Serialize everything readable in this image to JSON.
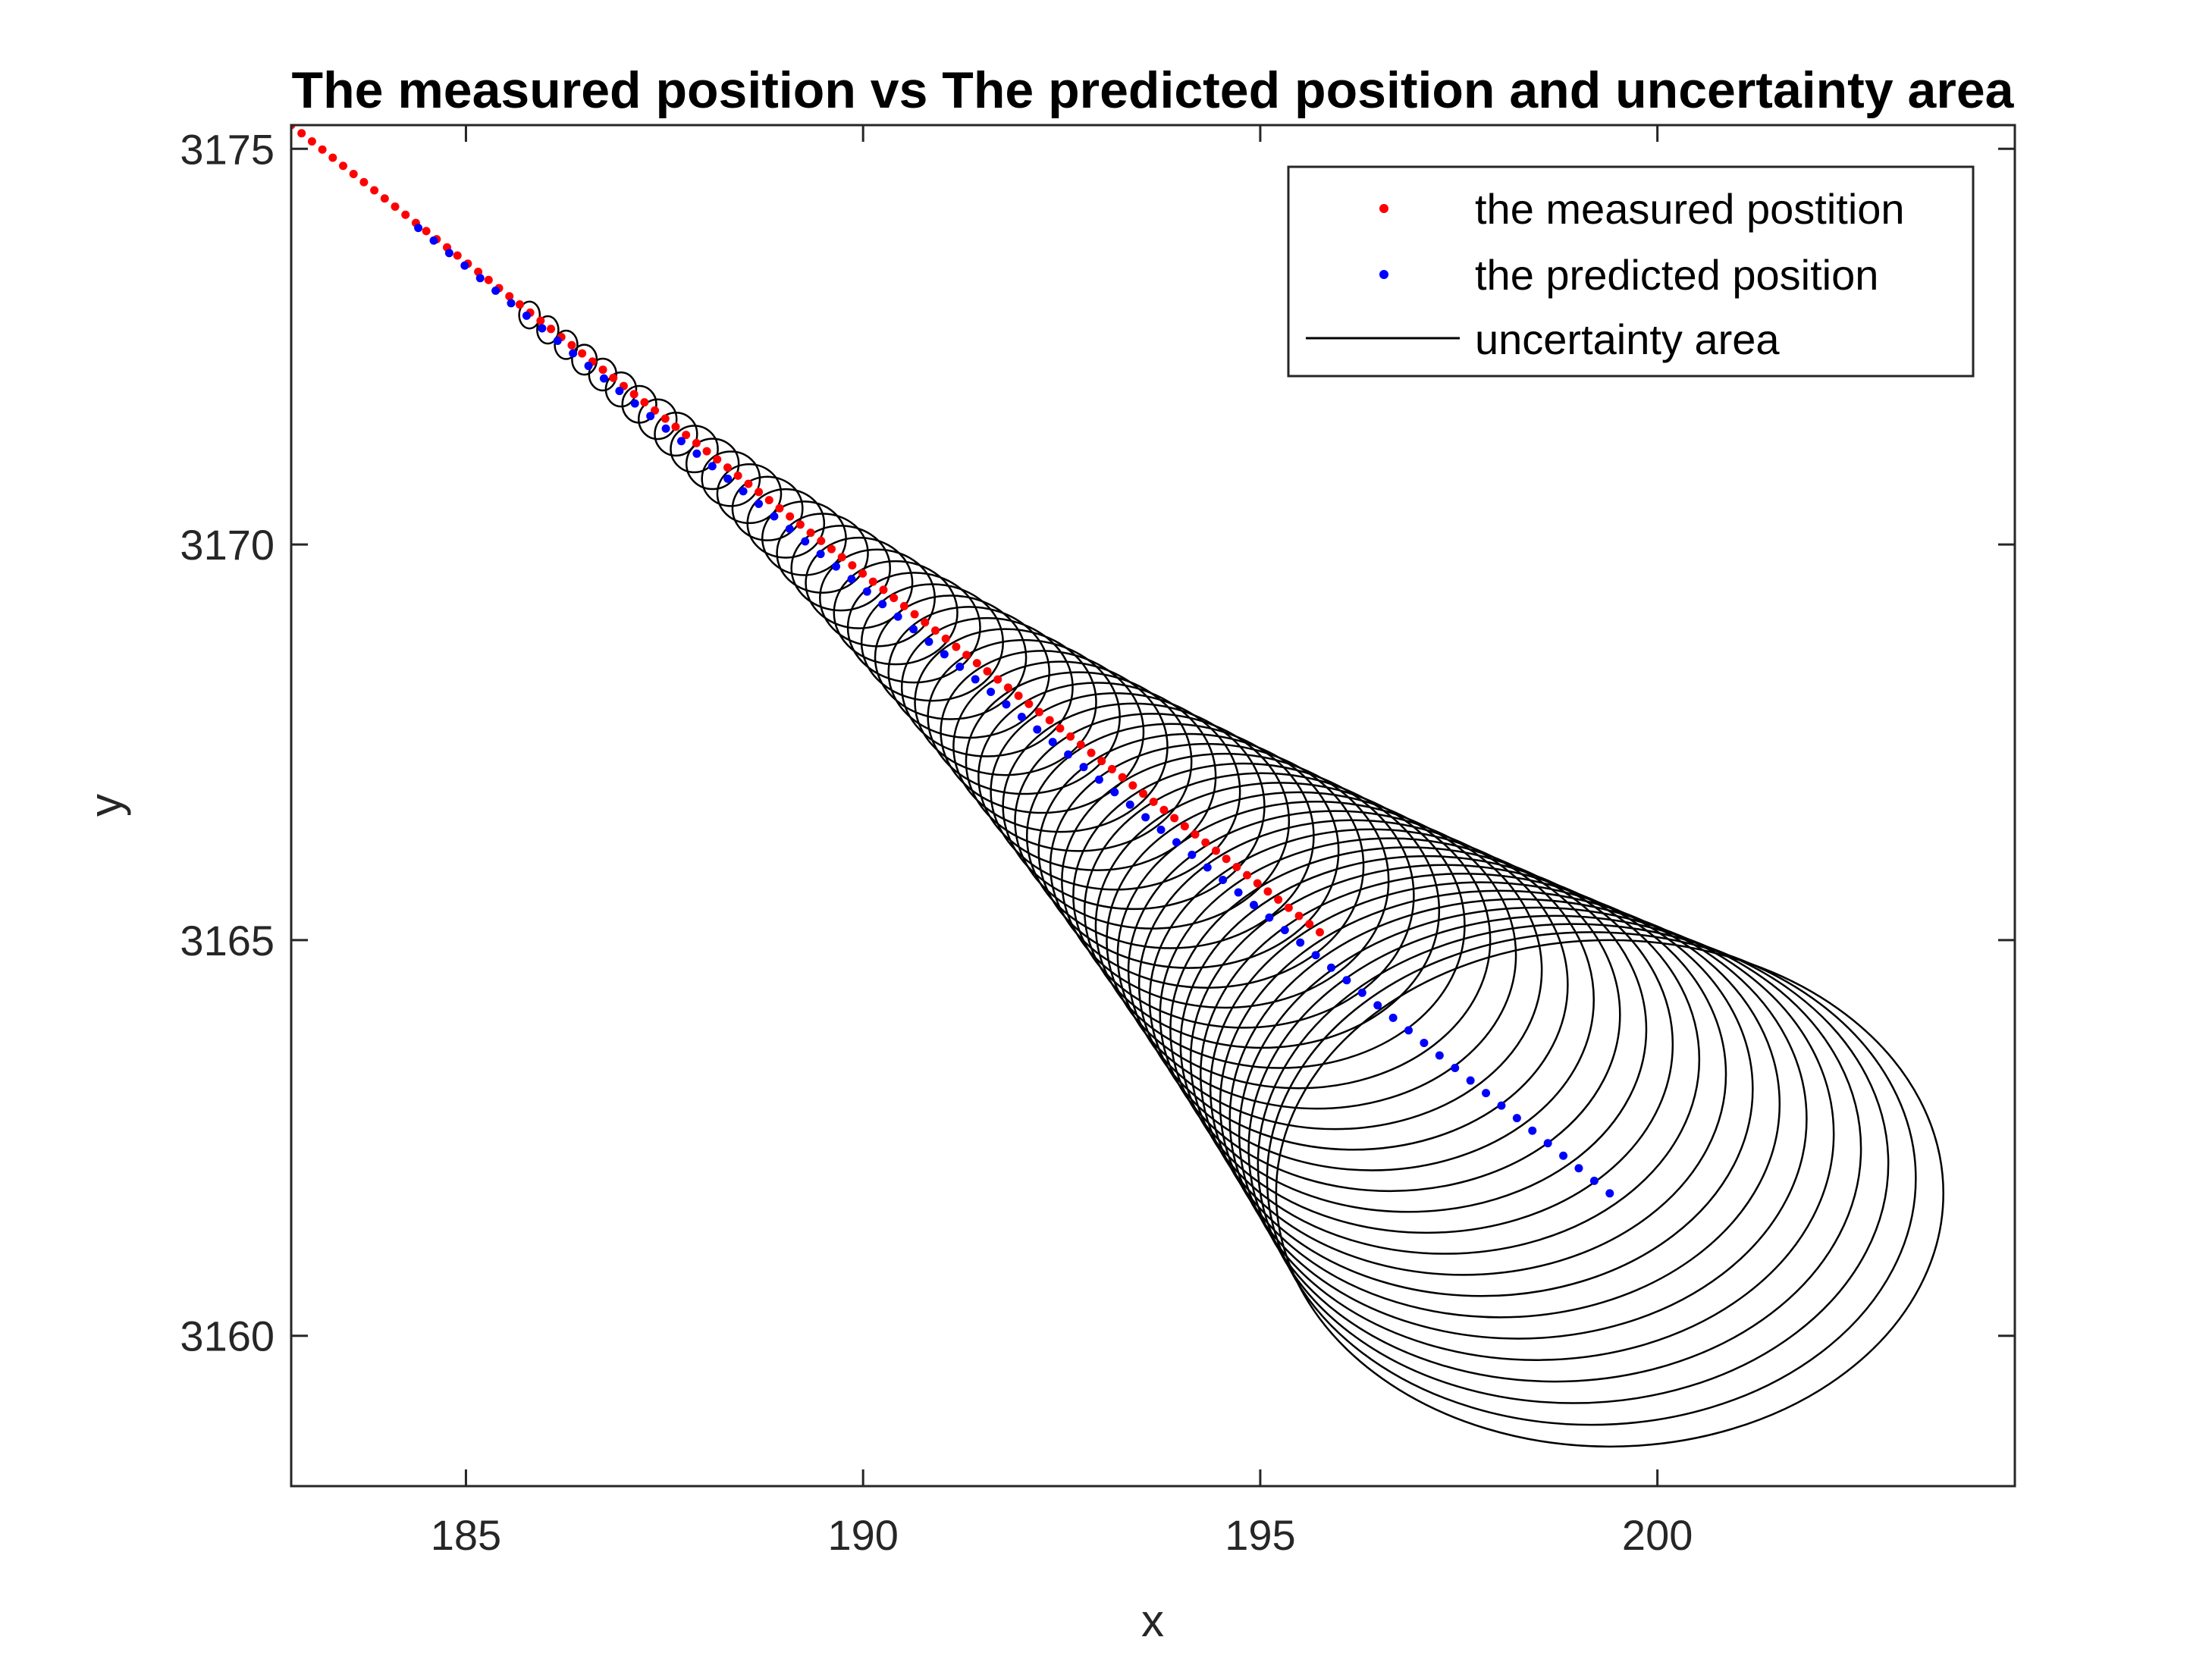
{
  "chart_data": {
    "type": "scatter",
    "title": "The measured position vs The predicted position and uncertainty area",
    "xlabel": "x",
    "ylabel": "y",
    "xlim": [
      182.8,
      204.5
    ],
    "ylim": [
      3158.1,
      3175.3
    ],
    "xticks": [
      185,
      190,
      195,
      200
    ],
    "yticks": [
      3160,
      3165,
      3170,
      3175
    ],
    "xtick_labels": [
      "185",
      "190",
      "195",
      "200"
    ],
    "ytick_labels": [
      "3160",
      "3165",
      "3170",
      "3175"
    ],
    "grid": false,
    "box": true,
    "legend_position": "top-right",
    "series": [
      {
        "name": "the measured postition",
        "marker": "dot",
        "color": "#ff0000",
        "start": [
          182.8,
          3175.3
        ],
        "end": [
          195.75,
          3165.1
        ],
        "count": 100
      },
      {
        "name": "the predicted position",
        "marker": "dot",
        "color": "#0000ff",
        "start": [
          184.4,
          3174.0
        ],
        "end": [
          199.4,
          3161.8
        ],
        "count": 78
      },
      {
        "name": "uncertainty area",
        "marker": "line",
        "color": "#000000",
        "shape": "ellipse",
        "center_start": [
          185.8,
          3172.9
        ],
        "center_end": [
          199.4,
          3161.8
        ],
        "rx_start": 0.13,
        "rx_end": 4.2,
        "ry_start": 0.17,
        "ry_end": 3.2,
        "count": 60
      }
    ]
  }
}
